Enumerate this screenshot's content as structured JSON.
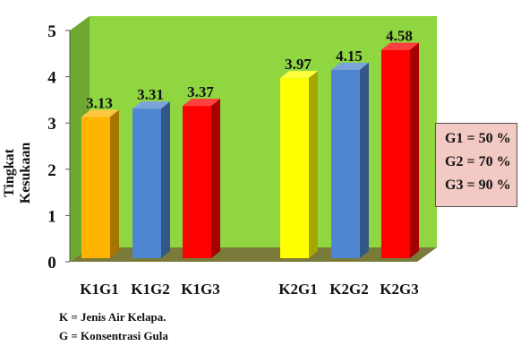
{
  "chart_data": {
    "type": "bar",
    "ylabel": "Tingkat Kesukaan",
    "ylim": [
      0,
      5
    ],
    "yticks": [
      0,
      1,
      2,
      3,
      4,
      5
    ],
    "categories": [
      "K1G1",
      "K1G2",
      "K1G3",
      "K2G1",
      "K2G2",
      "K2G3"
    ],
    "values": [
      3.13,
      3.31,
      3.37,
      3.97,
      4.15,
      4.58
    ],
    "data_labels": [
      "3.13",
      "3.31",
      "3.37",
      "3.97",
      "4.15",
      "4.58"
    ],
    "bar_colors": [
      "#ffb400",
      "#4f86d2",
      "#ff0000",
      "#ffff00",
      "#4f86d2",
      "#ff0000"
    ],
    "wall_color": "#8fd641",
    "floor_color": "#7a7a3a",
    "legend": [
      "G1 = 50 %",
      "G2 = 70 %",
      "G3 = 90 %"
    ],
    "notes": [
      "K = Jenis Air Kelapa.",
      "G = Konsentrasi Gula"
    ]
  }
}
